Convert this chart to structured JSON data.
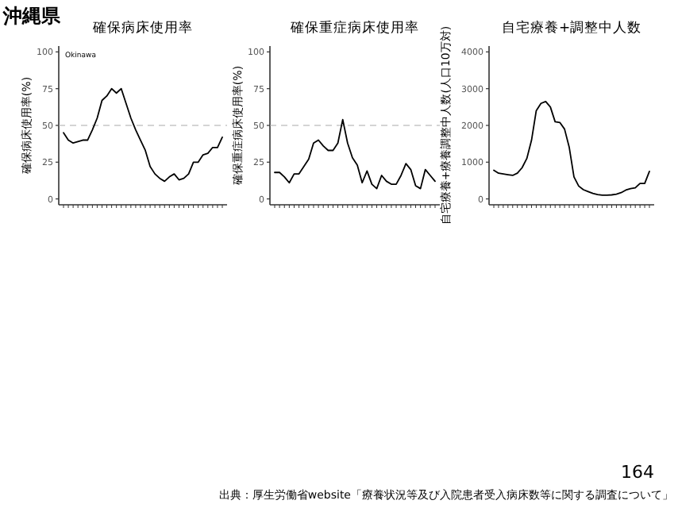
{
  "chart_data": [
    {
      "type": "line",
      "title": "確保病床使用率",
      "ylabel": "確保病床使用率(%)",
      "annotations": [
        "沖縄県",
        "Okinawa"
      ],
      "categories": [
        null,
        null,
        null,
        null,
        null,
        null,
        null,
        null,
        null,
        null,
        null,
        null,
        null,
        null,
        null,
        null,
        null,
        null,
        null,
        null,
        null,
        null,
        null,
        null,
        null,
        null,
        null,
        null,
        null,
        null,
        null,
        null,
        null,
        null
      ],
      "series": [
        {
          "color": "#000000",
          "values": [
            45,
            40,
            38,
            39,
            40,
            40,
            47,
            55,
            67,
            70,
            75,
            72,
            75,
            65,
            55,
            47,
            40,
            33,
            22,
            17,
            14,
            12,
            15,
            17,
            13,
            14,
            17,
            25,
            25,
            30,
            31,
            35,
            35,
            42
          ]
        }
      ],
      "ylim": [
        -4,
        104
      ],
      "yticks": [
        0,
        25,
        50,
        75,
        100
      ],
      "ref_lines": [
        {
          "axis": "y",
          "value": 50,
          "color": "#aaaaaa",
          "line_style": "dashed"
        }
      ]
    },
    {
      "type": "line",
      "title": "確保重症病床使用率",
      "ylabel": "確保重症病床使用率(%)",
      "categories": [
        null,
        null,
        null,
        null,
        null,
        null,
        null,
        null,
        null,
        null,
        null,
        null,
        null,
        null,
        null,
        null,
        null,
        null,
        null,
        null,
        null,
        null,
        null,
        null,
        null,
        null,
        null,
        null,
        null,
        null,
        null,
        null,
        null,
        null
      ],
      "series": [
        {
          "color": "#000000",
          "values": [
            18,
            18,
            15,
            11,
            17,
            17,
            22,
            27,
            38,
            40,
            36,
            33,
            33,
            38,
            54,
            38,
            28,
            23,
            11,
            19,
            10,
            7,
            16,
            12,
            10,
            10,
            16,
            24,
            20,
            9,
            7,
            20,
            16,
            12
          ]
        }
      ],
      "ylim": [
        -4,
        104
      ],
      "yticks": [
        0,
        25,
        50,
        75,
        100
      ],
      "ref_lines": [
        {
          "axis": "y",
          "value": 50,
          "color": "#aaaaaa",
          "line_style": "dashed"
        }
      ]
    },
    {
      "type": "line",
      "title": "自宅療養+調整中人数",
      "ylabel": "自宅療養+療養調整中人数(人口10万対)",
      "annotations": [
        "164",
        "出典：厚生労働省website「療養状況等及び入院患者受入病床数等に関する調査について」"
      ],
      "categories": [
        null,
        null,
        null,
        null,
        null,
        null,
        null,
        null,
        null,
        null,
        null,
        null,
        null,
        null,
        null,
        null,
        null,
        null,
        null,
        null,
        null,
        null,
        null,
        null,
        null,
        null,
        null,
        null,
        null,
        null,
        null,
        null,
        null,
        null
      ],
      "series": [
        {
          "color": "#000000",
          "values": [
            780,
            700,
            680,
            660,
            640,
            700,
            850,
            1100,
            1600,
            2400,
            2600,
            2650,
            2500,
            2100,
            2080,
            1900,
            1400,
            600,
            350,
            250,
            200,
            150,
            120,
            100,
            100,
            110,
            130,
            170,
            240,
            280,
            300,
            420,
            420,
            750
          ]
        }
      ],
      "ylim": [
        -160,
        4160
      ],
      "yticks": [
        0,
        1000,
        2000,
        3000,
        4000
      ]
    }
  ]
}
